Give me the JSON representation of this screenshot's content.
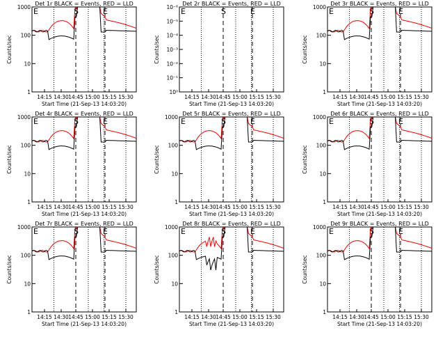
{
  "colors": {
    "events": "#000000",
    "lld": "#ff0000",
    "axes": "#000000",
    "background": "#ffffff"
  },
  "chart_data": [
    {
      "type": "line",
      "title": "Det 1r BLACK = Events, RED = LLD",
      "xlabel": "Start Time (21-Sep-13 14:03:20)",
      "ylabel": "Counts/sec",
      "y_scale": "log",
      "ylim": [
        1,
        1000
      ],
      "y_ticks": [
        "1",
        "10",
        "100",
        "1000"
      ],
      "x_tick_labels": [
        "14:15",
        "14:30",
        "14:45",
        "15:00",
        "15:15",
        "15:30"
      ],
      "markers": [
        {
          "label": "E",
          "x": 0.0
        },
        {
          "label": "S",
          "x": 0.42
        },
        {
          "label": "E",
          "x": 0.7
        }
      ],
      "series": [
        {
          "color": "red",
          "shape": "normal",
          "base": 150,
          "level": 300,
          "post": 150
        },
        {
          "color": "black",
          "shape": "normal",
          "base": 100,
          "level": 80,
          "post": 100
        }
      ]
    },
    {
      "type": "line",
      "title": "Det 2r BLACK = Events, RED = LLD",
      "xlabel": "Start Time (21-Sep-13 14:03:20)",
      "ylabel": "Counts/sec",
      "y_scale": "log",
      "ylim": [
        1,
        1e-06
      ],
      "y_ticks": [
        "10⁰",
        "10⁻¹",
        "10⁻²",
        "10⁻³",
        "10⁻⁴",
        "10⁻⁵",
        "10⁻⁶"
      ],
      "x_tick_labels": [
        "14:15",
        "14:30",
        "14:45",
        "15:00",
        "15:15",
        "15:30"
      ],
      "markers": [
        {
          "label": "E",
          "x": 0.0
        },
        {
          "label": "S",
          "x": 0.42
        },
        {
          "label": "E",
          "x": 0.7
        }
      ],
      "series": []
    },
    {
      "type": "line",
      "title": "Det 3r BLACK = Events, RED = LLD",
      "xlabel": "Start Time (21-Sep-13 14:03:20)",
      "ylabel": "Counts/sec",
      "y_scale": "log",
      "ylim": [
        1,
        1000
      ],
      "y_ticks": [
        "1",
        "10",
        "100",
        "1000"
      ],
      "x_tick_labels": [
        "14:15",
        "14:30",
        "14:45",
        "15:00",
        "15:15",
        "15:30"
      ],
      "markers": [
        {
          "label": "E",
          "x": 0.0
        },
        {
          "label": "S",
          "x": 0.42
        },
        {
          "label": "E",
          "x": 0.7
        }
      ],
      "series": [
        {
          "color": "red",
          "shape": "normal",
          "base": 150,
          "level": 300,
          "post": 150
        },
        {
          "color": "black",
          "shape": "normal",
          "base": 100,
          "level": 80,
          "post": 100
        }
      ]
    },
    {
      "type": "line",
      "title": "Det 4r BLACK = Events, RED = LLD",
      "xlabel": "Start Time (21-Sep-13 14:03:20)",
      "ylabel": "Counts/sec",
      "y_scale": "log",
      "ylim": [
        1,
        1000
      ],
      "y_ticks": [
        "1",
        "10",
        "100",
        "1000"
      ],
      "x_tick_labels": [
        "14:15",
        "14:30",
        "14:45",
        "15:00",
        "15:15",
        "15:30"
      ],
      "markers": [
        {
          "label": "E",
          "x": 0.0
        },
        {
          "label": "S",
          "x": 0.42
        },
        {
          "label": "E",
          "x": 0.7
        }
      ],
      "series": [
        {
          "color": "red",
          "shape": "normal",
          "base": 150,
          "level": 300,
          "post": 150
        },
        {
          "color": "black",
          "shape": "normal",
          "base": 100,
          "level": 80,
          "post": 100
        }
      ]
    },
    {
      "type": "line",
      "title": "Det 5r BLACK = Events, RED = LLD",
      "xlabel": "Start Time (21-Sep-13 14:03:20)",
      "ylabel": "Counts/sec",
      "y_scale": "log",
      "ylim": [
        1,
        1000
      ],
      "y_ticks": [
        "1",
        "10",
        "100",
        "1000"
      ],
      "x_tick_labels": [
        "14:15",
        "14:30",
        "14:45",
        "15:00",
        "15:15",
        "15:30"
      ],
      "markers": [
        {
          "label": "E",
          "x": 0.0
        },
        {
          "label": "S",
          "x": 0.42
        },
        {
          "label": "E",
          "x": 0.7
        }
      ],
      "series": [
        {
          "color": "red",
          "shape": "normal",
          "base": 150,
          "level": 300,
          "post": 150
        },
        {
          "color": "black",
          "shape": "normal",
          "base": 100,
          "level": 80,
          "post": 100
        }
      ]
    },
    {
      "type": "line",
      "title": "Det 6r BLACK = Events, RED = LLD",
      "xlabel": "Start Time (21-Sep-13 14:03:20)",
      "ylabel": "Counts/sec",
      "y_scale": "log",
      "ylim": [
        1,
        1000
      ],
      "y_ticks": [
        "1",
        "10",
        "100",
        "1000"
      ],
      "x_tick_labels": [
        "14:15",
        "14:30",
        "14:45",
        "15:00",
        "15:15",
        "15:30"
      ],
      "markers": [
        {
          "label": "E",
          "x": 0.0
        },
        {
          "label": "S",
          "x": 0.42
        },
        {
          "label": "E",
          "x": 0.7
        }
      ],
      "series": [
        {
          "color": "red",
          "shape": "normal",
          "base": 150,
          "level": 300,
          "post": 150
        },
        {
          "color": "black",
          "shape": "normal",
          "base": 100,
          "level": 80,
          "post": 100
        }
      ]
    },
    {
      "type": "line",
      "title": "Det 7r BLACK = Events, RED = LLD",
      "xlabel": "Start Time (21-Sep-13 14:03:20)",
      "ylabel": "Counts/sec",
      "y_scale": "log",
      "ylim": [
        1,
        1000
      ],
      "y_ticks": [
        "1",
        "10",
        "100",
        "1000"
      ],
      "x_tick_labels": [
        "14:15",
        "14:30",
        "14:45",
        "15:00",
        "15:15",
        "15:30"
      ],
      "markers": [
        {
          "label": "E",
          "x": 0.0
        },
        {
          "label": "S",
          "x": 0.42
        },
        {
          "label": "E",
          "x": 0.7
        }
      ],
      "series": [
        {
          "color": "red",
          "shape": "normal",
          "base": 150,
          "level": 300,
          "post": 150
        },
        {
          "color": "black",
          "shape": "normal",
          "base": 100,
          "level": 80,
          "post": 100
        }
      ]
    },
    {
      "type": "line",
      "title": "Det 8r BLACK = Events, RED = LLD",
      "xlabel": "Start Time (21-Sep-13 14:03:20)",
      "ylabel": "Counts/sec",
      "y_scale": "log",
      "ylim": [
        1,
        1000
      ],
      "y_ticks": [
        "1",
        "10",
        "100",
        "1000"
      ],
      "x_tick_labels": [
        "14:15",
        "14:30",
        "14:45",
        "15:00",
        "15:15",
        "15:30"
      ],
      "markers": [
        {
          "label": "E",
          "x": 0.0
        },
        {
          "label": "S",
          "x": 0.42
        },
        {
          "label": "E",
          "x": 0.7
        }
      ],
      "series": [
        {
          "color": "red",
          "shape": "det8",
          "base": 150,
          "level": 300,
          "post": 150
        },
        {
          "color": "black",
          "shape": "det8",
          "base": 100,
          "level": 80,
          "post": 100
        }
      ]
    },
    {
      "type": "line",
      "title": "Det 9r BLACK = Events, RED = LLD",
      "xlabel": "Start Time (21-Sep-13 14:03:20)",
      "ylabel": "Counts/sec",
      "y_scale": "log",
      "ylim": [
        1,
        1000
      ],
      "y_ticks": [
        "1",
        "10",
        "100",
        "1000"
      ],
      "x_tick_labels": [
        "14:15",
        "14:30",
        "14:45",
        "15:00",
        "15:15",
        "15:30"
      ],
      "markers": [
        {
          "label": "E",
          "x": 0.0
        },
        {
          "label": "S",
          "x": 0.42
        },
        {
          "label": "E",
          "x": 0.7
        }
      ],
      "series": [
        {
          "color": "red",
          "shape": "normal",
          "base": 150,
          "level": 300,
          "post": 150
        },
        {
          "color": "black",
          "shape": "normal",
          "base": 100,
          "level": 80,
          "post": 100
        }
      ]
    }
  ]
}
